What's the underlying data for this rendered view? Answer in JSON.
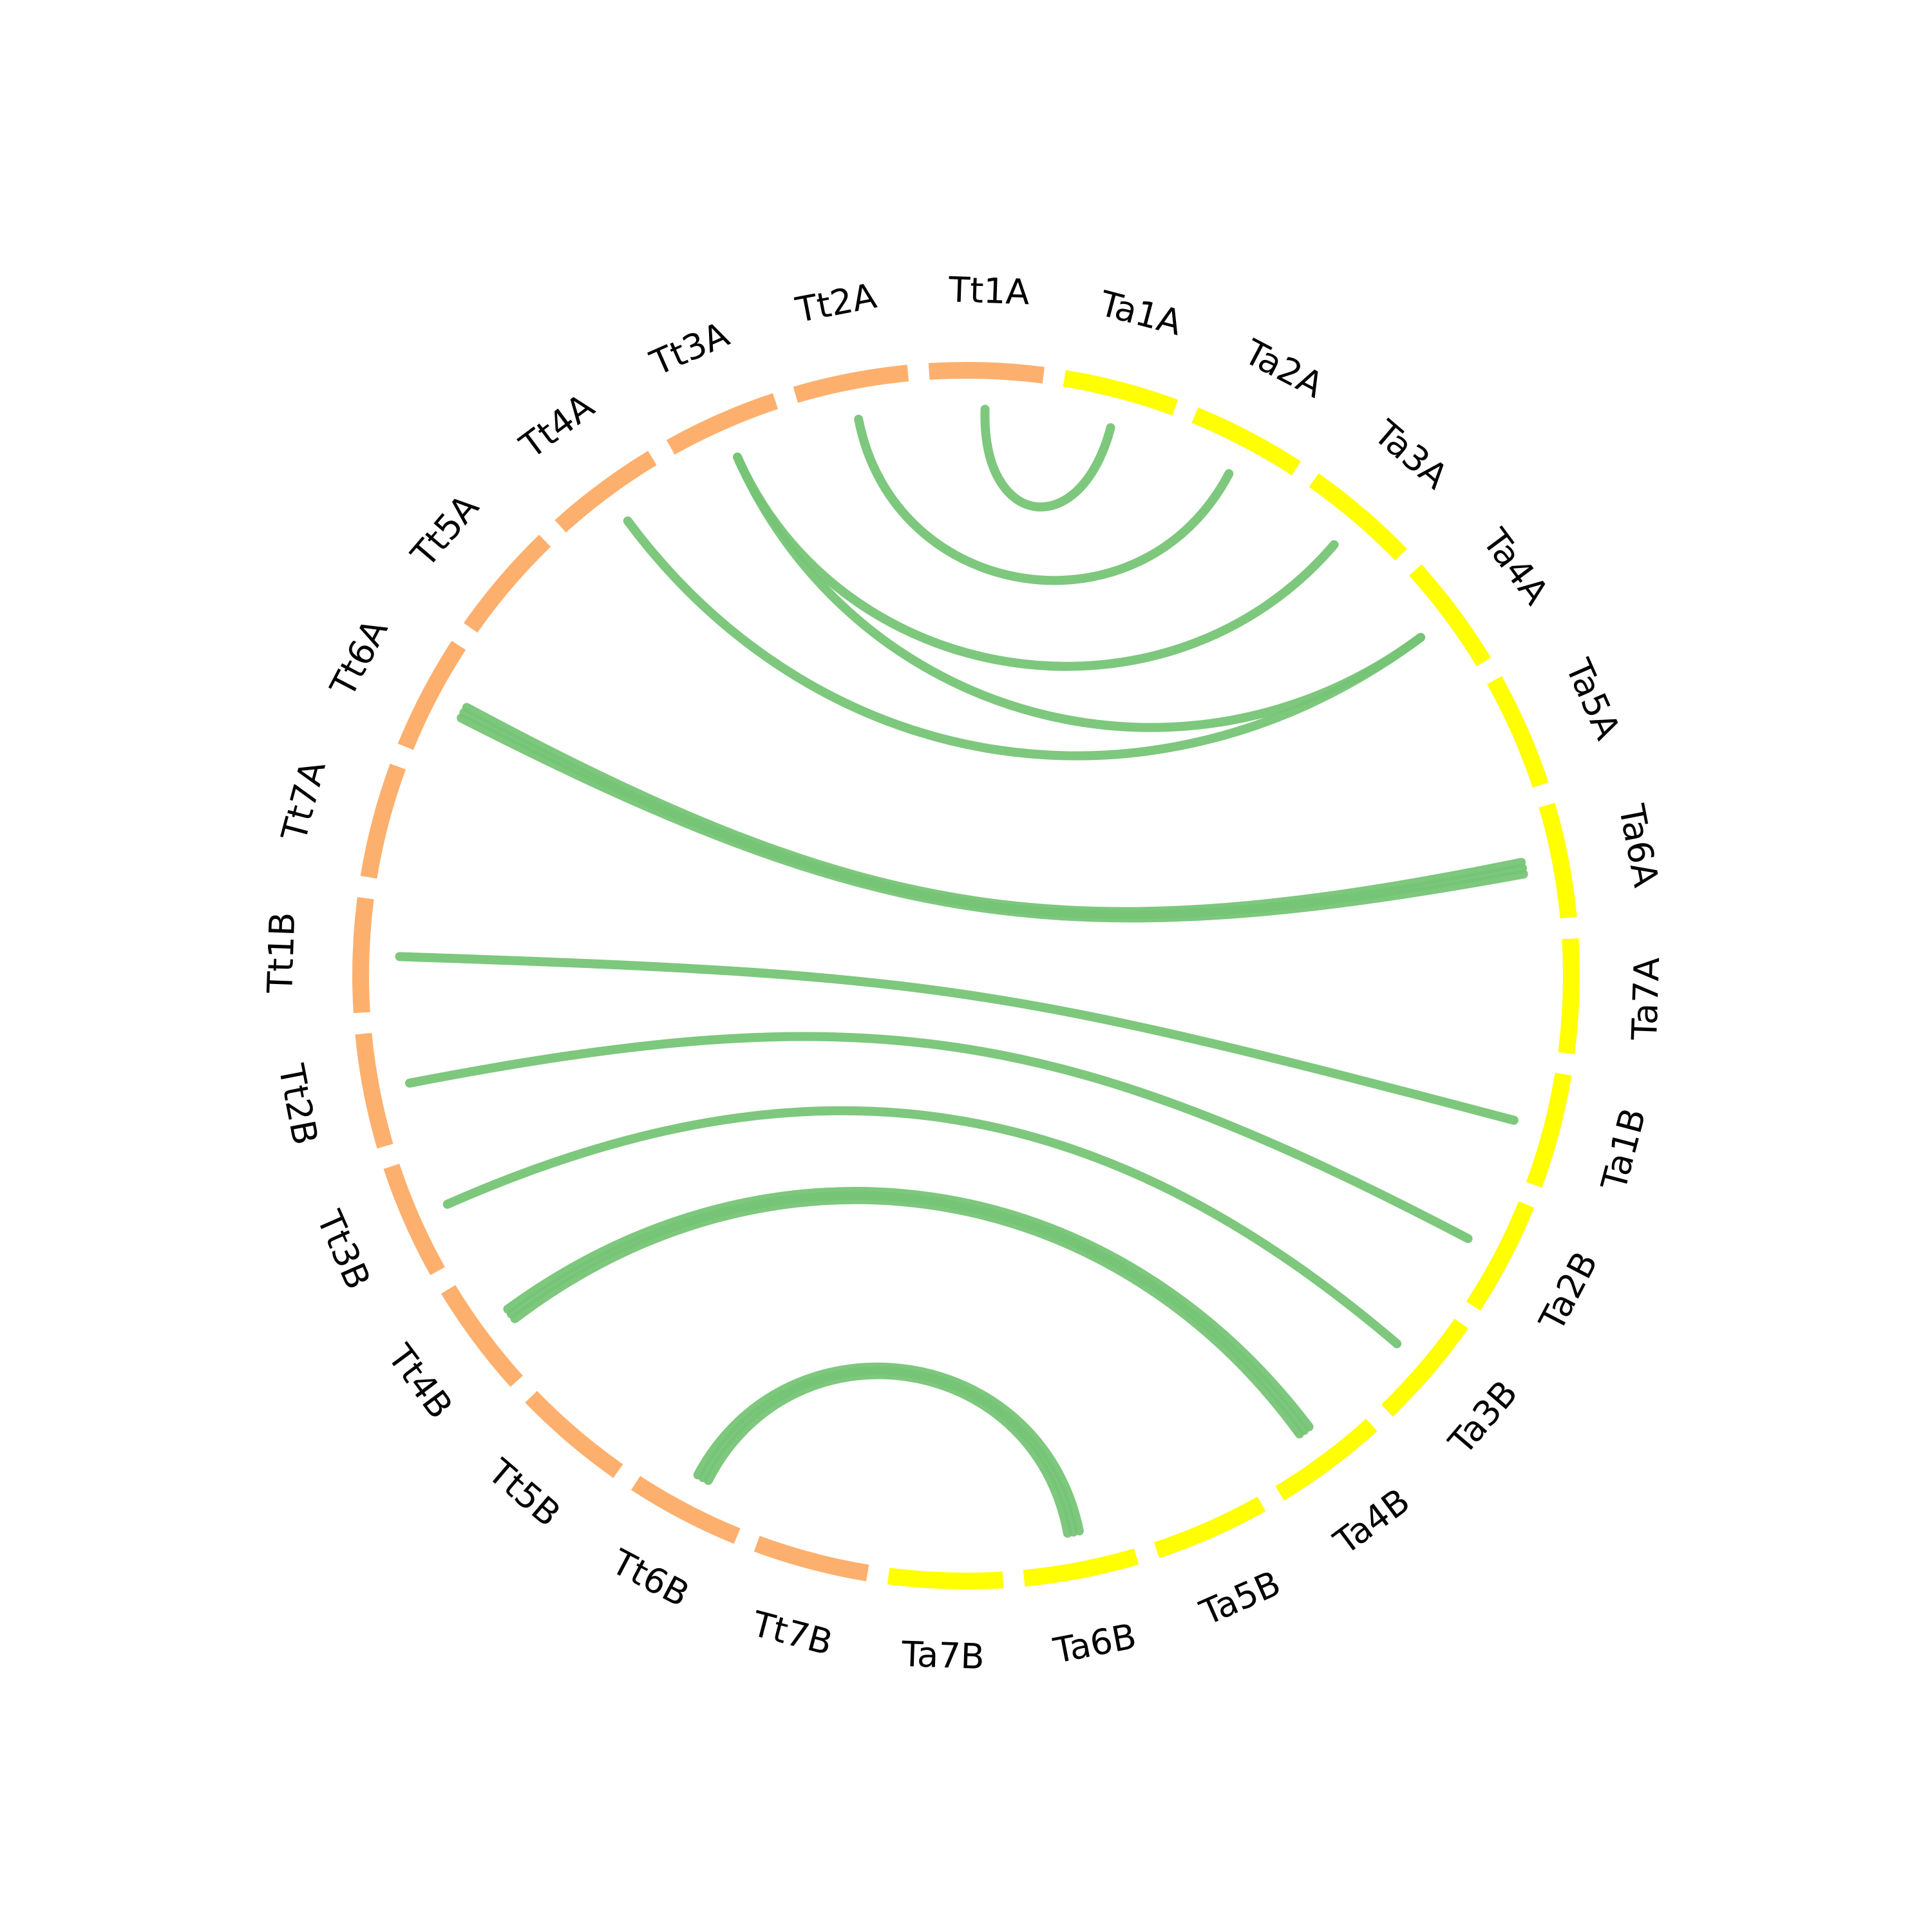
{
  "chart_data": {
    "type": "chord",
    "colors": {
      "Tt": "#FDB06E",
      "Ta": "#FFFF00",
      "link": "#76C576",
      "background": "#FFFFFF",
      "label": "#000000"
    },
    "segments": [
      {
        "id": "Tt1A",
        "label": "Tt1A",
        "group": "Tt"
      },
      {
        "id": "Ta1A",
        "label": "Ta1A",
        "group": "Ta"
      },
      {
        "id": "Ta2A",
        "label": "Ta2A",
        "group": "Ta"
      },
      {
        "id": "Ta3A",
        "label": "Ta3A",
        "group": "Ta"
      },
      {
        "id": "Ta4A",
        "label": "Ta4A",
        "group": "Ta"
      },
      {
        "id": "Ta5A",
        "label": "Ta5A",
        "group": "Ta"
      },
      {
        "id": "Ta6A",
        "label": "Ta6A",
        "group": "Ta"
      },
      {
        "id": "Ta7A",
        "label": "Ta7A",
        "group": "Ta"
      },
      {
        "id": "Ta1B",
        "label": "Ta1B",
        "group": "Ta"
      },
      {
        "id": "Ta2B",
        "label": "Ta2B",
        "group": "Ta"
      },
      {
        "id": "Ta3B",
        "label": "Ta3B",
        "group": "Ta"
      },
      {
        "id": "Ta4B",
        "label": "Ta4B",
        "group": "Ta"
      },
      {
        "id": "Ta5B",
        "label": "Ta5B",
        "group": "Ta"
      },
      {
        "id": "Ta6B",
        "label": "Ta6B",
        "group": "Ta"
      },
      {
        "id": "Ta7B",
        "label": "Ta7B",
        "group": "Ta"
      },
      {
        "id": "Tt7B",
        "label": "Tt7B",
        "group": "Tt"
      },
      {
        "id": "Tt6B",
        "label": "Tt6B",
        "group": "Tt"
      },
      {
        "id": "Tt5B",
        "label": "Tt5B",
        "group": "Tt"
      },
      {
        "id": "Tt4B",
        "label": "Tt4B",
        "group": "Tt"
      },
      {
        "id": "Tt3B",
        "label": "Tt3B",
        "group": "Tt"
      },
      {
        "id": "Tt2B",
        "label": "Tt2B",
        "group": "Tt"
      },
      {
        "id": "Tt1B",
        "label": "Tt1B",
        "group": "Tt"
      },
      {
        "id": "Tt7A",
        "label": "Tt7A",
        "group": "Tt"
      },
      {
        "id": "Tt6A",
        "label": "Tt6A",
        "group": "Tt"
      },
      {
        "id": "Tt5A",
        "label": "Tt5A",
        "group": "Tt"
      },
      {
        "id": "Tt4A",
        "label": "Tt4A",
        "group": "Tt"
      },
      {
        "id": "Tt3A",
        "label": "Tt3A",
        "group": "Tt"
      },
      {
        "id": "Tt2A",
        "label": "Tt2A",
        "group": "Tt"
      }
    ],
    "links": [
      {
        "source": "Tt1A",
        "target": "Ta1A",
        "count": 1
      },
      {
        "source": "Tt2A",
        "target": "Ta2A",
        "count": 1
      },
      {
        "source": "Tt3A",
        "target": "Ta3A",
        "count": 1
      },
      {
        "source": "Tt3A",
        "target": "Ta4A",
        "count": 1
      },
      {
        "source": "Tt4A",
        "target": "Ta4A",
        "count": 1
      },
      {
        "source": "Tt6A",
        "target": "Ta6A",
        "count": 3
      },
      {
        "source": "Tt1B",
        "target": "Ta1B",
        "count": 1
      },
      {
        "source": "Tt2B",
        "target": "Ta2B",
        "count": 1
      },
      {
        "source": "Tt3B",
        "target": "Ta3B",
        "count": 1
      },
      {
        "source": "Tt4B",
        "target": "Ta4B",
        "count": 3
      },
      {
        "source": "Tt6B",
        "target": "Ta6B",
        "count": 3
      }
    ]
  }
}
